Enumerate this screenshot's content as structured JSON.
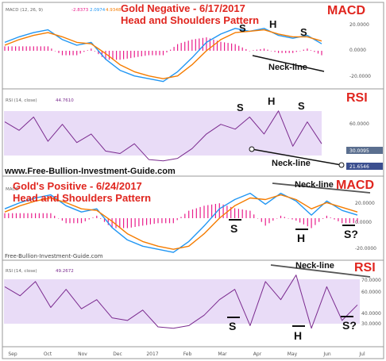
{
  "top": {
    "title_line1": "Gold Negative - 6/17/2017",
    "title_line2": "Head and Shoulders Pattern",
    "macd_label": "MACD",
    "rsi_label": "RSI",
    "macd_params": "MACD (12, 26, 9)",
    "macd_values": [
      "-2.8373",
      "2.0974",
      "4.9348"
    ],
    "rsi_params": "RSI (14, close)",
    "rsi_value": "44.7610",
    "pattern_S1": "S",
    "pattern_H": "H",
    "pattern_S2": "S",
    "neckline": "Neck-line",
    "macd_ticks": [
      "20.0000",
      "0.0000",
      "-20.0000"
    ],
    "rsi_ticks": [
      "60.0000",
      "30.0095",
      "21.6546"
    ],
    "site": "www.Free-Bullion-Investment-Guide.com"
  },
  "bottom": {
    "title_line1": "Gold's Positive - 6/24/2017",
    "title_line2": "Head and Shoulders Pattern",
    "macd_label": "MACD",
    "rsi_label": "RSI",
    "macd_params": "MACD",
    "rsi_params": "RSI (14, close)",
    "rsi_value": "49.2672",
    "pattern_S1": "S",
    "pattern_H": "H",
    "pattern_S2": "S?",
    "neckline": "Neck-line",
    "macd_ticks": [
      "20.0000",
      "0.0000",
      "-20.0000"
    ],
    "rsi_ticks": [
      "70.0000",
      "60.0000",
      "40.0000",
      "30.0000"
    ],
    "site": "Free-Bullion-Investment-Guide.com"
  },
  "x_ticks": [
    "Sep",
    "Oct",
    "Nov",
    "Dec",
    "2017",
    "Feb",
    "Mar",
    "Apr",
    "May",
    "Jun",
    "Jul"
  ],
  "colors": {
    "macd": "#2196f3",
    "signal": "#f57c00",
    "hist": "#e91e8c",
    "rsi": "#7b2b8f",
    "band": "#e9dcf7",
    "accent": "#e0261f"
  },
  "chart_data": [
    {
      "type": "line",
      "title": "Gold Negative - 6/17/2017 Head and Shoulders Pattern",
      "panel": "MACD",
      "series": [
        {
          "name": "MACD",
          "values": [
            6,
            10,
            13,
            15,
            8,
            4,
            6,
            -6,
            -14,
            -18,
            -20,
            -22,
            -15,
            -5,
            6,
            12,
            16,
            14,
            16,
            11,
            9,
            11,
            5
          ]
        },
        {
          "name": "Signal",
          "values": [
            4,
            8,
            11,
            13,
            10,
            6,
            5,
            -2,
            -10,
            -15,
            -18,
            -20,
            -18,
            -10,
            0,
            8,
            13,
            14,
            15,
            12,
            10,
            10,
            7
          ]
        }
      ],
      "ylim": [
        -25,
        25
      ]
    },
    {
      "type": "line",
      "panel": "RSI",
      "series": [
        {
          "name": "RSI",
          "values": [
            62,
            55,
            66,
            46,
            60,
            45,
            52,
            38,
            36,
            44,
            31,
            30,
            32,
            40,
            52,
            60,
            56,
            66,
            52,
            71,
            42,
            62,
            44
          ]
        }
      ],
      "ylim": [
        20,
        80
      ]
    },
    {
      "type": "line",
      "title": "Gold's Positive - 6/24/2017 Head and Shoulders Pattern",
      "panel": "MACD",
      "series": [
        {
          "name": "MACD",
          "values": [
            6,
            10,
            13,
            15,
            8,
            4,
            6,
            -6,
            -14,
            -18,
            -20,
            -22,
            -15,
            -5,
            6,
            12,
            16,
            9,
            16,
            11,
            2,
            11,
            5,
            2
          ]
        },
        {
          "name": "Signal",
          "values": [
            4,
            8,
            11,
            13,
            10,
            6,
            5,
            -2,
            -10,
            -15,
            -18,
            -20,
            -18,
            -10,
            0,
            8,
            13,
            12,
            15,
            12,
            6,
            10,
            7,
            4
          ]
        }
      ],
      "ylim": [
        -25,
        25
      ]
    },
    {
      "type": "line",
      "panel": "RSI",
      "series": [
        {
          "name": "RSI",
          "values": [
            62,
            55,
            66,
            46,
            60,
            45,
            52,
            38,
            36,
            44,
            31,
            30,
            32,
            40,
            52,
            60,
            32,
            66,
            52,
            71,
            30,
            62,
            36,
            48
          ]
        }
      ],
      "ylim": [
        20,
        80
      ]
    }
  ]
}
